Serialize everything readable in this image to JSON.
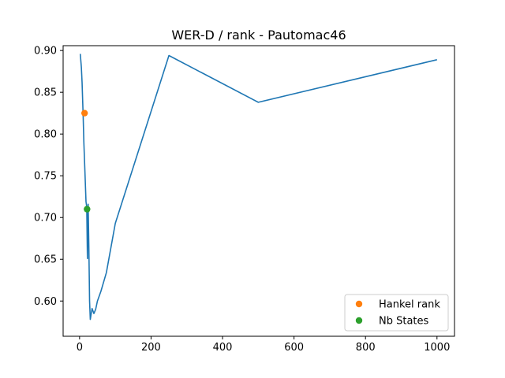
{
  "chart_data": {
    "type": "line",
    "title": "WER-D / rank - Pautomac46",
    "xlabel": "",
    "ylabel": "",
    "xlim": [
      -46,
      1049
    ],
    "ylim": [
      0.5578,
      0.9058
    ],
    "xticks": [
      0,
      200,
      400,
      600,
      800,
      1000
    ],
    "xtick_labels": [
      "0",
      "200",
      "400",
      "600",
      "800",
      "1000"
    ],
    "yticks": [
      0.6,
      0.65,
      0.7,
      0.75,
      0.8,
      0.85,
      0.9
    ],
    "ytick_labels": [
      "0.60",
      "0.65",
      "0.70",
      "0.75",
      "0.80",
      "0.85",
      "0.90"
    ],
    "grid": false,
    "legend_position": "lower-right",
    "series": [
      {
        "color": "#1f77b4",
        "x": [
          2,
          5,
          7,
          10,
          12,
          15,
          18,
          20,
          22,
          24,
          26,
          28,
          30,
          35,
          40,
          45,
          50,
          60,
          75,
          100,
          250,
          500,
          1000
        ],
        "y": [
          0.896,
          0.88,
          0.862,
          0.822,
          0.79,
          0.755,
          0.719,
          0.713,
          0.651,
          0.716,
          0.665,
          0.6,
          0.578,
          0.591,
          0.585,
          0.59,
          0.6,
          0.612,
          0.634,
          0.693,
          0.894,
          0.838,
          0.889
        ]
      }
    ],
    "markers": [
      {
        "name": "Hankel rank",
        "x": 14,
        "y": 0.825,
        "color": "#ff7f0e"
      },
      {
        "name": "Nb States",
        "x": 21,
        "y": 0.71,
        "color": "#2ca02c"
      }
    ]
  }
}
